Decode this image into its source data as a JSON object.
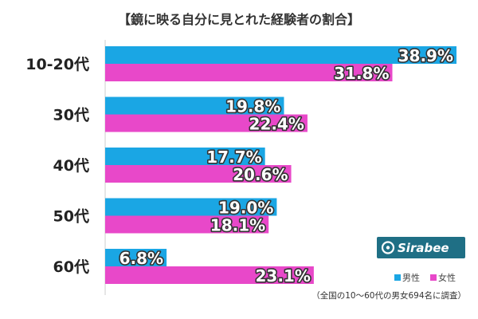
{
  "chart_data": {
    "type": "bar",
    "orientation": "horizontal",
    "title": "【鏡に映る自分に見とれた経験者の割合】",
    "categories": [
      "10-20代",
      "30代",
      "40代",
      "50代",
      "60代"
    ],
    "series": [
      {
        "name": "男性",
        "values": [
          38.9,
          19.8,
          17.7,
          19.0,
          6.8
        ],
        "labels": [
          "38.9%",
          "19.8%",
          "17.7%",
          "19.0%",
          "6.8%"
        ]
      },
      {
        "name": "女性",
        "values": [
          31.8,
          22.4,
          20.6,
          18.1,
          23.1
        ],
        "labels": [
          "31.8%",
          "22.4%",
          "20.6%",
          "18.1%",
          "23.1%"
        ]
      }
    ],
    "xlim": [
      0,
      38.9
    ],
    "grid": false,
    "legend": "bottom-right"
  },
  "colors": {
    "male": "#1aa6e4",
    "female": "#e848c9"
  },
  "brand": {
    "name": "Sirabee",
    "color": "#1f6f85",
    "icon": "sirabee-logo-icon"
  },
  "footnote": "（全国の10～60代の男女694名に調査）"
}
